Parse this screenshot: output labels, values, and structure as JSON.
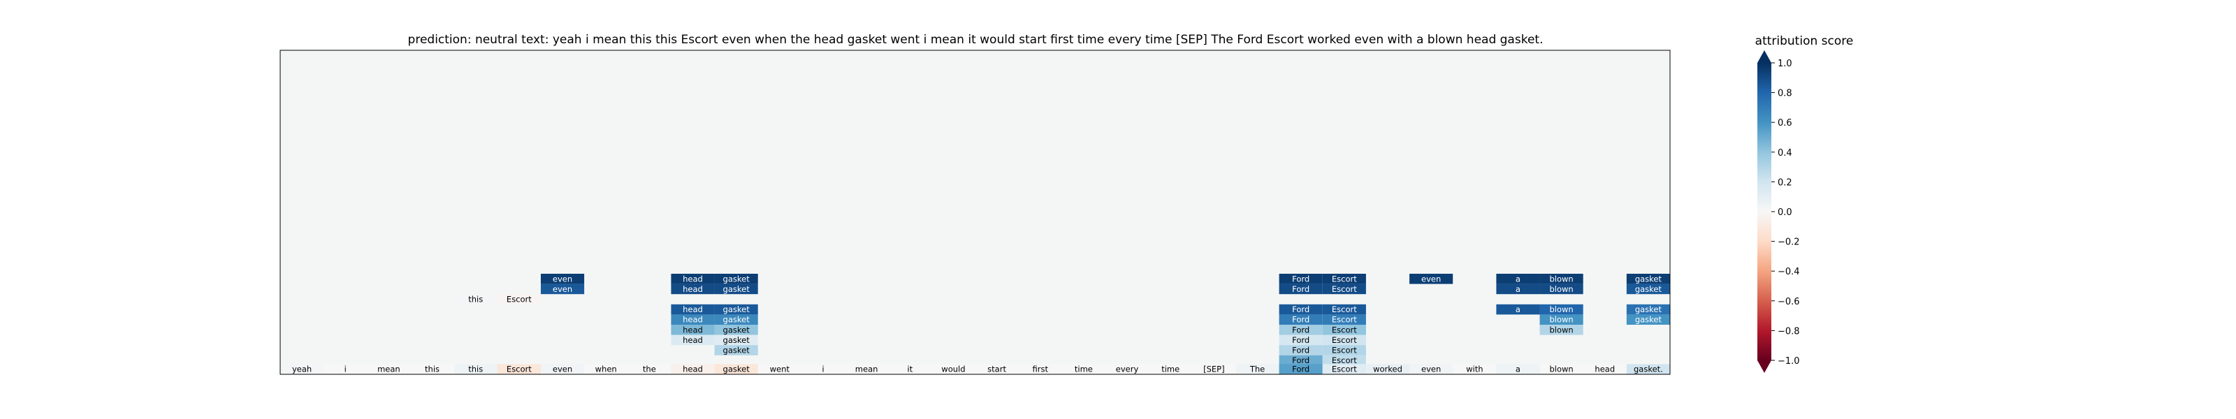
{
  "chart_data": {
    "type": "heatmap",
    "title": "prediction:  neutral     text:  yeah i mean this this Escort even when the head gasket went i mean it would start first time every time [SEP] The Ford Escort worked even with a blown head gasket.",
    "tokens": [
      "yeah",
      "i",
      "mean",
      "this",
      "this",
      "Escort",
      "even",
      "when",
      "the",
      "head",
      "gasket",
      "went",
      "i",
      "mean",
      "it",
      "would",
      "start",
      "first",
      "time",
      "every",
      "time",
      "[SEP]",
      "The",
      "Ford",
      "Escort",
      "worked",
      "even",
      "with",
      "a",
      "blown",
      "head",
      "gasket."
    ],
    "bottom_row_scores": [
      0.02,
      0.0,
      0.0,
      0.0,
      0.05,
      -0.12,
      0.03,
      0.0,
      0.0,
      -0.05,
      -0.12,
      0.0,
      0.0,
      0.0,
      0.0,
      0.0,
      0.0,
      0.0,
      0.0,
      0.0,
      0.0,
      0.0,
      0.05,
      0.55,
      0.12,
      0.08,
      0.03,
      0.0,
      0.05,
      0.0,
      0.0,
      0.2
    ],
    "rows_shown": 10,
    "cells": [
      {
        "row": 0,
        "col": 6,
        "text": "even",
        "score": 0.95
      },
      {
        "row": 0,
        "col": 9,
        "text": "head",
        "score": 0.95
      },
      {
        "row": 0,
        "col": 10,
        "text": "gasket",
        "score": 0.95
      },
      {
        "row": 0,
        "col": 23,
        "text": "Ford",
        "score": 0.95
      },
      {
        "row": 0,
        "col": 24,
        "text": "Escort",
        "score": 0.95
      },
      {
        "row": 0,
        "col": 26,
        "text": "even",
        "score": 0.95
      },
      {
        "row": 0,
        "col": 28,
        "text": "a",
        "score": 0.95
      },
      {
        "row": 0,
        "col": 29,
        "text": "blown",
        "score": 0.95
      },
      {
        "row": 0,
        "col": 31,
        "text": "gasket",
        "score": 0.95
      },
      {
        "row": 1,
        "col": 6,
        "text": "even",
        "score": 0.85
      },
      {
        "row": 1,
        "col": 9,
        "text": "head",
        "score": 0.9
      },
      {
        "row": 1,
        "col": 10,
        "text": "gasket",
        "score": 0.9
      },
      {
        "row": 1,
        "col": 23,
        "text": "Ford",
        "score": 0.9
      },
      {
        "row": 1,
        "col": 24,
        "text": "Escort",
        "score": 0.9
      },
      {
        "row": 1,
        "col": 28,
        "text": "a",
        "score": 0.9
      },
      {
        "row": 1,
        "col": 29,
        "text": "blown",
        "score": 0.9
      },
      {
        "row": 1,
        "col": 31,
        "text": "gasket",
        "score": 0.85
      },
      {
        "row": 2,
        "col": 4,
        "text": "this",
        "score": 0.02
      },
      {
        "row": 2,
        "col": 5,
        "text": "Escort",
        "score": -0.02
      },
      {
        "row": 3,
        "col": 9,
        "text": "head",
        "score": 0.85
      },
      {
        "row": 3,
        "col": 10,
        "text": "gasket",
        "score": 0.85
      },
      {
        "row": 3,
        "col": 23,
        "text": "Ford",
        "score": 0.85
      },
      {
        "row": 3,
        "col": 24,
        "text": "Escort",
        "score": 0.85
      },
      {
        "row": 3,
        "col": 28,
        "text": "a",
        "score": 0.85
      },
      {
        "row": 3,
        "col": 29,
        "text": "blown",
        "score": 0.8
      },
      {
        "row": 3,
        "col": 31,
        "text": "gasket",
        "score": 0.75
      },
      {
        "row": 4,
        "col": 9,
        "text": "head",
        "score": 0.65
      },
      {
        "row": 4,
        "col": 10,
        "text": "gasket",
        "score": 0.65
      },
      {
        "row": 4,
        "col": 23,
        "text": "Ford",
        "score": 0.7
      },
      {
        "row": 4,
        "col": 24,
        "text": "Escort",
        "score": 0.7
      },
      {
        "row": 4,
        "col": 29,
        "text": "blown",
        "score": 0.6
      },
      {
        "row": 4,
        "col": 31,
        "text": "gasket",
        "score": 0.6
      },
      {
        "row": 5,
        "col": 9,
        "text": "head",
        "score": 0.45
      },
      {
        "row": 5,
        "col": 10,
        "text": "gasket",
        "score": 0.4
      },
      {
        "row": 5,
        "col": 23,
        "text": "Ford",
        "score": 0.35
      },
      {
        "row": 5,
        "col": 24,
        "text": "Escort",
        "score": 0.4
      },
      {
        "row": 5,
        "col": 29,
        "text": "blown",
        "score": 0.3
      },
      {
        "row": 6,
        "col": 9,
        "text": "head",
        "score": 0.15
      },
      {
        "row": 6,
        "col": 10,
        "text": "gasket",
        "score": 0.12
      },
      {
        "row": 6,
        "col": 23,
        "text": "Ford",
        "score": 0.18
      },
      {
        "row": 6,
        "col": 24,
        "text": "Escort",
        "score": 0.2
      },
      {
        "row": 7,
        "col": 10,
        "text": "gasket",
        "score": 0.3
      },
      {
        "row": 7,
        "col": 23,
        "text": "Ford",
        "score": 0.3
      },
      {
        "row": 7,
        "col": 24,
        "text": "Escort",
        "score": 0.3
      },
      {
        "row": 8,
        "col": 23,
        "text": "Ford",
        "score": 0.5
      },
      {
        "row": 8,
        "col": 24,
        "text": "Escort",
        "score": 0.25
      }
    ],
    "colorbar": {
      "label": "attribution score",
      "ticks": [
        "1.0",
        "0.8",
        "0.6",
        "0.4",
        "0.2",
        "0.0",
        "−0.2",
        "−0.4",
        "−0.6",
        "−0.8",
        "−1.0"
      ],
      "tick_values": [
        1.0,
        0.8,
        0.6,
        0.4,
        0.2,
        0.0,
        -0.2,
        -0.4,
        -0.6,
        -0.8,
        -1.0
      ],
      "range": [
        -1.0,
        1.0
      ],
      "colormap": "RdBu"
    }
  }
}
